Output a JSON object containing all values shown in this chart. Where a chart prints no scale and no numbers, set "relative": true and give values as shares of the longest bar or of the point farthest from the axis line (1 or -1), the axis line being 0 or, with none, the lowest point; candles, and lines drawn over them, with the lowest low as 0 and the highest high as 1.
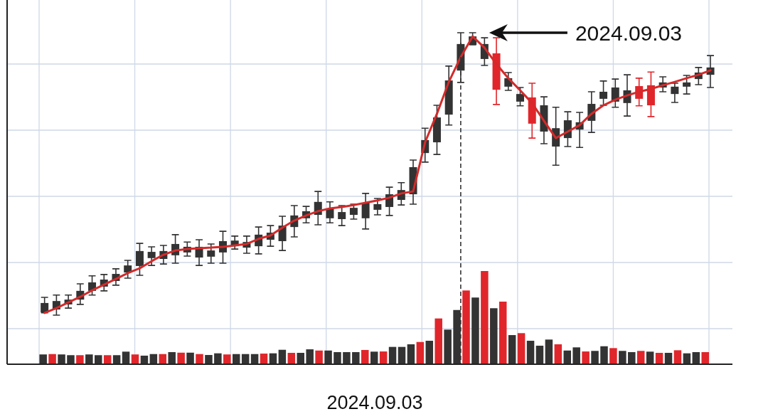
{
  "chart_data": [
    {
      "type": "candlestick",
      "relative": true,
      "grid": true,
      "xlabel": "2024.09.03",
      "categories": [
        null,
        null,
        null,
        null,
        null,
        null,
        null,
        null,
        null,
        null,
        null,
        null,
        null,
        null,
        null,
        null,
        null,
        null,
        null,
        null,
        null,
        null,
        null,
        null,
        null,
        null,
        null,
        null,
        null,
        null,
        null,
        null,
        null,
        null,
        null,
        null,
        null,
        null,
        null,
        null,
        null,
        null,
        null,
        null,
        null,
        null,
        null,
        null,
        null,
        null,
        null,
        null,
        null,
        null,
        null,
        null,
        null
      ],
      "ohlc": [
        [
          0.01,
          0.063,
          0.008,
          0.043
        ],
        [
          0.02,
          0.071,
          0,
          0.05
        ],
        [
          0.038,
          0.071,
          0.025,
          0.055
        ],
        [
          0.055,
          0.111,
          0.038,
          0.086
        ],
        [
          0.086,
          0.139,
          0.071,
          0.116
        ],
        [
          0.101,
          0.144,
          0.086,
          0.126
        ],
        [
          0.121,
          0.164,
          0.106,
          0.146
        ],
        [
          0.151,
          0.194,
          0.131,
          0.176
        ],
        [
          0.174,
          0.254,
          0.141,
          0.227
        ],
        [
          0.202,
          0.242,
          0.176,
          0.224
        ],
        [
          0.199,
          0.247,
          0.181,
          0.227
        ],
        [
          0.212,
          0.285,
          0.184,
          0.252
        ],
        [
          0.222,
          0.259,
          0.209,
          0.242
        ],
        [
          0.204,
          0.267,
          0.176,
          0.242
        ],
        [
          0.207,
          0.252,
          0.184,
          0.229
        ],
        [
          0.222,
          0.297,
          0.184,
          0.262
        ],
        [
          0.244,
          0.28,
          0.234,
          0.264
        ],
        [
          0.239,
          0.28,
          0.219,
          0.259
        ],
        [
          0.244,
          0.312,
          0.217,
          0.285
        ],
        [
          0.267,
          0.317,
          0.244,
          0.292
        ],
        [
          0.262,
          0.35,
          0.229,
          0.317
        ],
        [
          0.312,
          0.388,
          0.277,
          0.353
        ],
        [
          0.343,
          0.385,
          0.327,
          0.368
        ],
        [
          0.355,
          0.438,
          0.32,
          0.401
        ],
        [
          0.343,
          0.401,
          0.327,
          0.378
        ],
        [
          0.34,
          0.388,
          0.317,
          0.365
        ],
        [
          0.355,
          0.393,
          0.34,
          0.38
        ],
        [
          0.343,
          0.431,
          0.305,
          0.398
        ],
        [
          0.373,
          0.413,
          0.355,
          0.393
        ],
        [
          0.383,
          0.453,
          0.353,
          0.428
        ],
        [
          0.408,
          0.469,
          0.39,
          0.443
        ],
        [
          0.428,
          0.549,
          0.393,
          0.524
        ],
        [
          0.574,
          0.662,
          0.542,
          0.62
        ],
        [
          0.612,
          0.743,
          0.569,
          0.7
        ],
        [
          0.71,
          0.882,
          0.673,
          0.831
        ],
        [
          0.866,
          1,
          0.824,
          0.96
        ],
        [
          0.957,
          1,
          0.957,
          0.987
        ],
        [
          0.907,
          0.982,
          0.884,
          0.96
        ],
        [
          0.927,
          0.982,
          0.746,
          0.798
        ],
        [
          0.809,
          0.859,
          0.796,
          0.839
        ],
        [
          0.756,
          0.806,
          0.741,
          0.783
        ],
        [
          0.771,
          0.821,
          0.627,
          0.678
        ],
        [
          0.65,
          0.773,
          0.607,
          0.743
        ],
        [
          0.597,
          0.736,
          0.531,
          0.662
        ],
        [
          0.627,
          0.72,
          0.597,
          0.69
        ],
        [
          0.657,
          0.718,
          0.594,
          0.683
        ],
        [
          0.688,
          0.791,
          0.647,
          0.748
        ],
        [
          0.766,
          0.829,
          0.743,
          0.791
        ],
        [
          0.756,
          0.836,
          0.736,
          0.806
        ],
        [
          0.751,
          0.851,
          0.705,
          0.796
        ],
        [
          0.811,
          0.839,
          0.741,
          0.766
        ],
        [
          0.814,
          0.861,
          0.703,
          0.743
        ],
        [
          0.806,
          0.844,
          0.791,
          0.824
        ],
        [
          0.783,
          0.821,
          0.753,
          0.809
        ],
        [
          0.809,
          0.849,
          0.783,
          0.824
        ],
        [
          0.836,
          0.877,
          0.816,
          0.859
        ],
        [
          0.851,
          0.919,
          0.806,
          0.877
        ]
      ],
      "colors": [
        "#333333",
        "#333333",
        "#333333",
        "#333333",
        "#333333",
        "#333333",
        "#333333",
        "#333333",
        "#333333",
        "#333333",
        "#333333",
        "#333333",
        "#333333",
        "#333333",
        "#333333",
        "#333333",
        "#333333",
        "#333333",
        "#333333",
        "#333333",
        "#333333",
        "#333333",
        "#333333",
        "#333333",
        "#333333",
        "#333333",
        "#333333",
        "#333333",
        "#333333",
        "#333333",
        "#333333",
        "#333333",
        "#333333",
        "#333333",
        "#333333",
        "#333333",
        "#333333",
        "#333333",
        "#e0262b",
        "#333333",
        "#333333",
        "#e0262b",
        "#333333",
        "#333333",
        "#333333",
        "#333333",
        "#333333",
        "#333333",
        "#333333",
        "#333333",
        "#e0262b",
        "#e0262b",
        "#333333",
        "#333333",
        "#333333",
        "#333333",
        "#333333"
      ],
      "series": [
        {
          "type": "line",
          "color": "#d42a2a",
          "values": [
            0.008,
            0.025,
            0.045,
            0.065,
            0.088,
            0.108,
            0.128,
            0.149,
            0.166,
            0.191,
            0.214,
            0.229,
            0.234,
            0.237,
            0.239,
            0.242,
            0.247,
            0.252,
            0.27,
            0.282,
            0.31,
            0.335,
            0.353,
            0.368,
            0.378,
            0.383,
            0.39,
            0.398,
            0.406,
            0.416,
            0.431,
            0.438,
            0.612,
            0.713,
            0.826,
            0.914,
            0.987,
            0.947,
            0.889,
            0.839,
            0.796,
            0.751,
            0.688,
            0.627,
            0.65,
            0.673,
            0.713,
            0.743,
            0.763,
            0.778,
            0.791,
            0.801,
            0.814,
            0.826,
            0.839,
            0.851,
            0.867
          ]
        }
      ],
      "annotations": [
        "2024.09.03"
      ]
    },
    {
      "type": "bar",
      "relative": true,
      "categories": [
        null,
        null,
        null,
        null,
        null,
        null,
        null,
        null,
        null,
        null,
        null,
        null,
        null,
        null,
        null,
        null,
        null,
        null,
        null,
        null,
        null,
        null,
        null,
        null,
        null,
        null,
        null,
        null,
        null,
        null,
        null,
        null,
        null,
        null,
        null,
        null,
        null,
        null,
        null,
        null,
        null,
        null,
        null,
        null,
        null,
        null,
        null,
        null,
        null,
        null,
        null,
        null,
        null,
        null,
        null,
        null,
        null,
        null,
        null,
        null,
        null,
        null,
        null,
        null,
        null,
        null,
        null,
        null,
        null,
        null,
        null,
        null,
        null
      ],
      "values": [
        0.103,
        0.107,
        0.103,
        0.095,
        0.095,
        0.103,
        0.095,
        0.095,
        0.095,
        0.133,
        0.103,
        0.09,
        0.107,
        0.107,
        0.128,
        0.122,
        0.122,
        0.107,
        0.097,
        0.115,
        0.103,
        0.107,
        0.107,
        0.107,
        0.112,
        0.115,
        0.153,
        0.12,
        0.12,
        0.158,
        0.145,
        0.145,
        0.128,
        0.128,
        0.128,
        0.151,
        0.133,
        0.135,
        0.184,
        0.184,
        0.212,
        0.237,
        0.25,
        0.49,
        0.37,
        0.581,
        0.791,
        0.715,
        1,
        0.6,
        0.671,
        0.311,
        0.332,
        0.25,
        0.197,
        0.263,
        0.212,
        0.145,
        0.179,
        0.135,
        0.141,
        0.191,
        0.171,
        0.141,
        0.128,
        0.141,
        0.133,
        0.12,
        0.12,
        0.148,
        0.115,
        0.128,
        0.128
      ],
      "colors": [
        "#333333",
        "#e0262b",
        "#333333",
        "#333333",
        "#e0262b",
        "#333333",
        "#333333",
        "#e0262b",
        "#333333",
        "#333333",
        "#e0262b",
        "#333333",
        "#333333",
        "#e0262b",
        "#333333",
        "#e0262b",
        "#333333",
        "#e0262b",
        "#333333",
        "#333333",
        "#e0262b",
        "#333333",
        "#333333",
        "#333333",
        "#e0262b",
        "#333333",
        "#333333",
        "#e0262b",
        "#333333",
        "#333333",
        "#e0262b",
        "#333333",
        "#333333",
        "#333333",
        "#333333",
        "#e0262b",
        "#333333",
        "#e0262b",
        "#333333",
        "#333333",
        "#333333",
        "#e0262b",
        "#333333",
        "#e0262b",
        "#333333",
        "#333333",
        "#e0262b",
        "#333333",
        "#e0262b",
        "#333333",
        "#e0262b",
        "#333333",
        "#e0262b",
        "#333333",
        "#333333",
        "#333333",
        "#e0262b",
        "#333333",
        "#333333",
        "#e0262b",
        "#333333",
        "#333333",
        "#e0262b",
        "#333333",
        "#333333",
        "#e0262b",
        "#333333",
        "#e0262b",
        "#333333",
        "#e0262b",
        "#333333",
        "#333333",
        "#e0262b"
      ]
    }
  ]
}
